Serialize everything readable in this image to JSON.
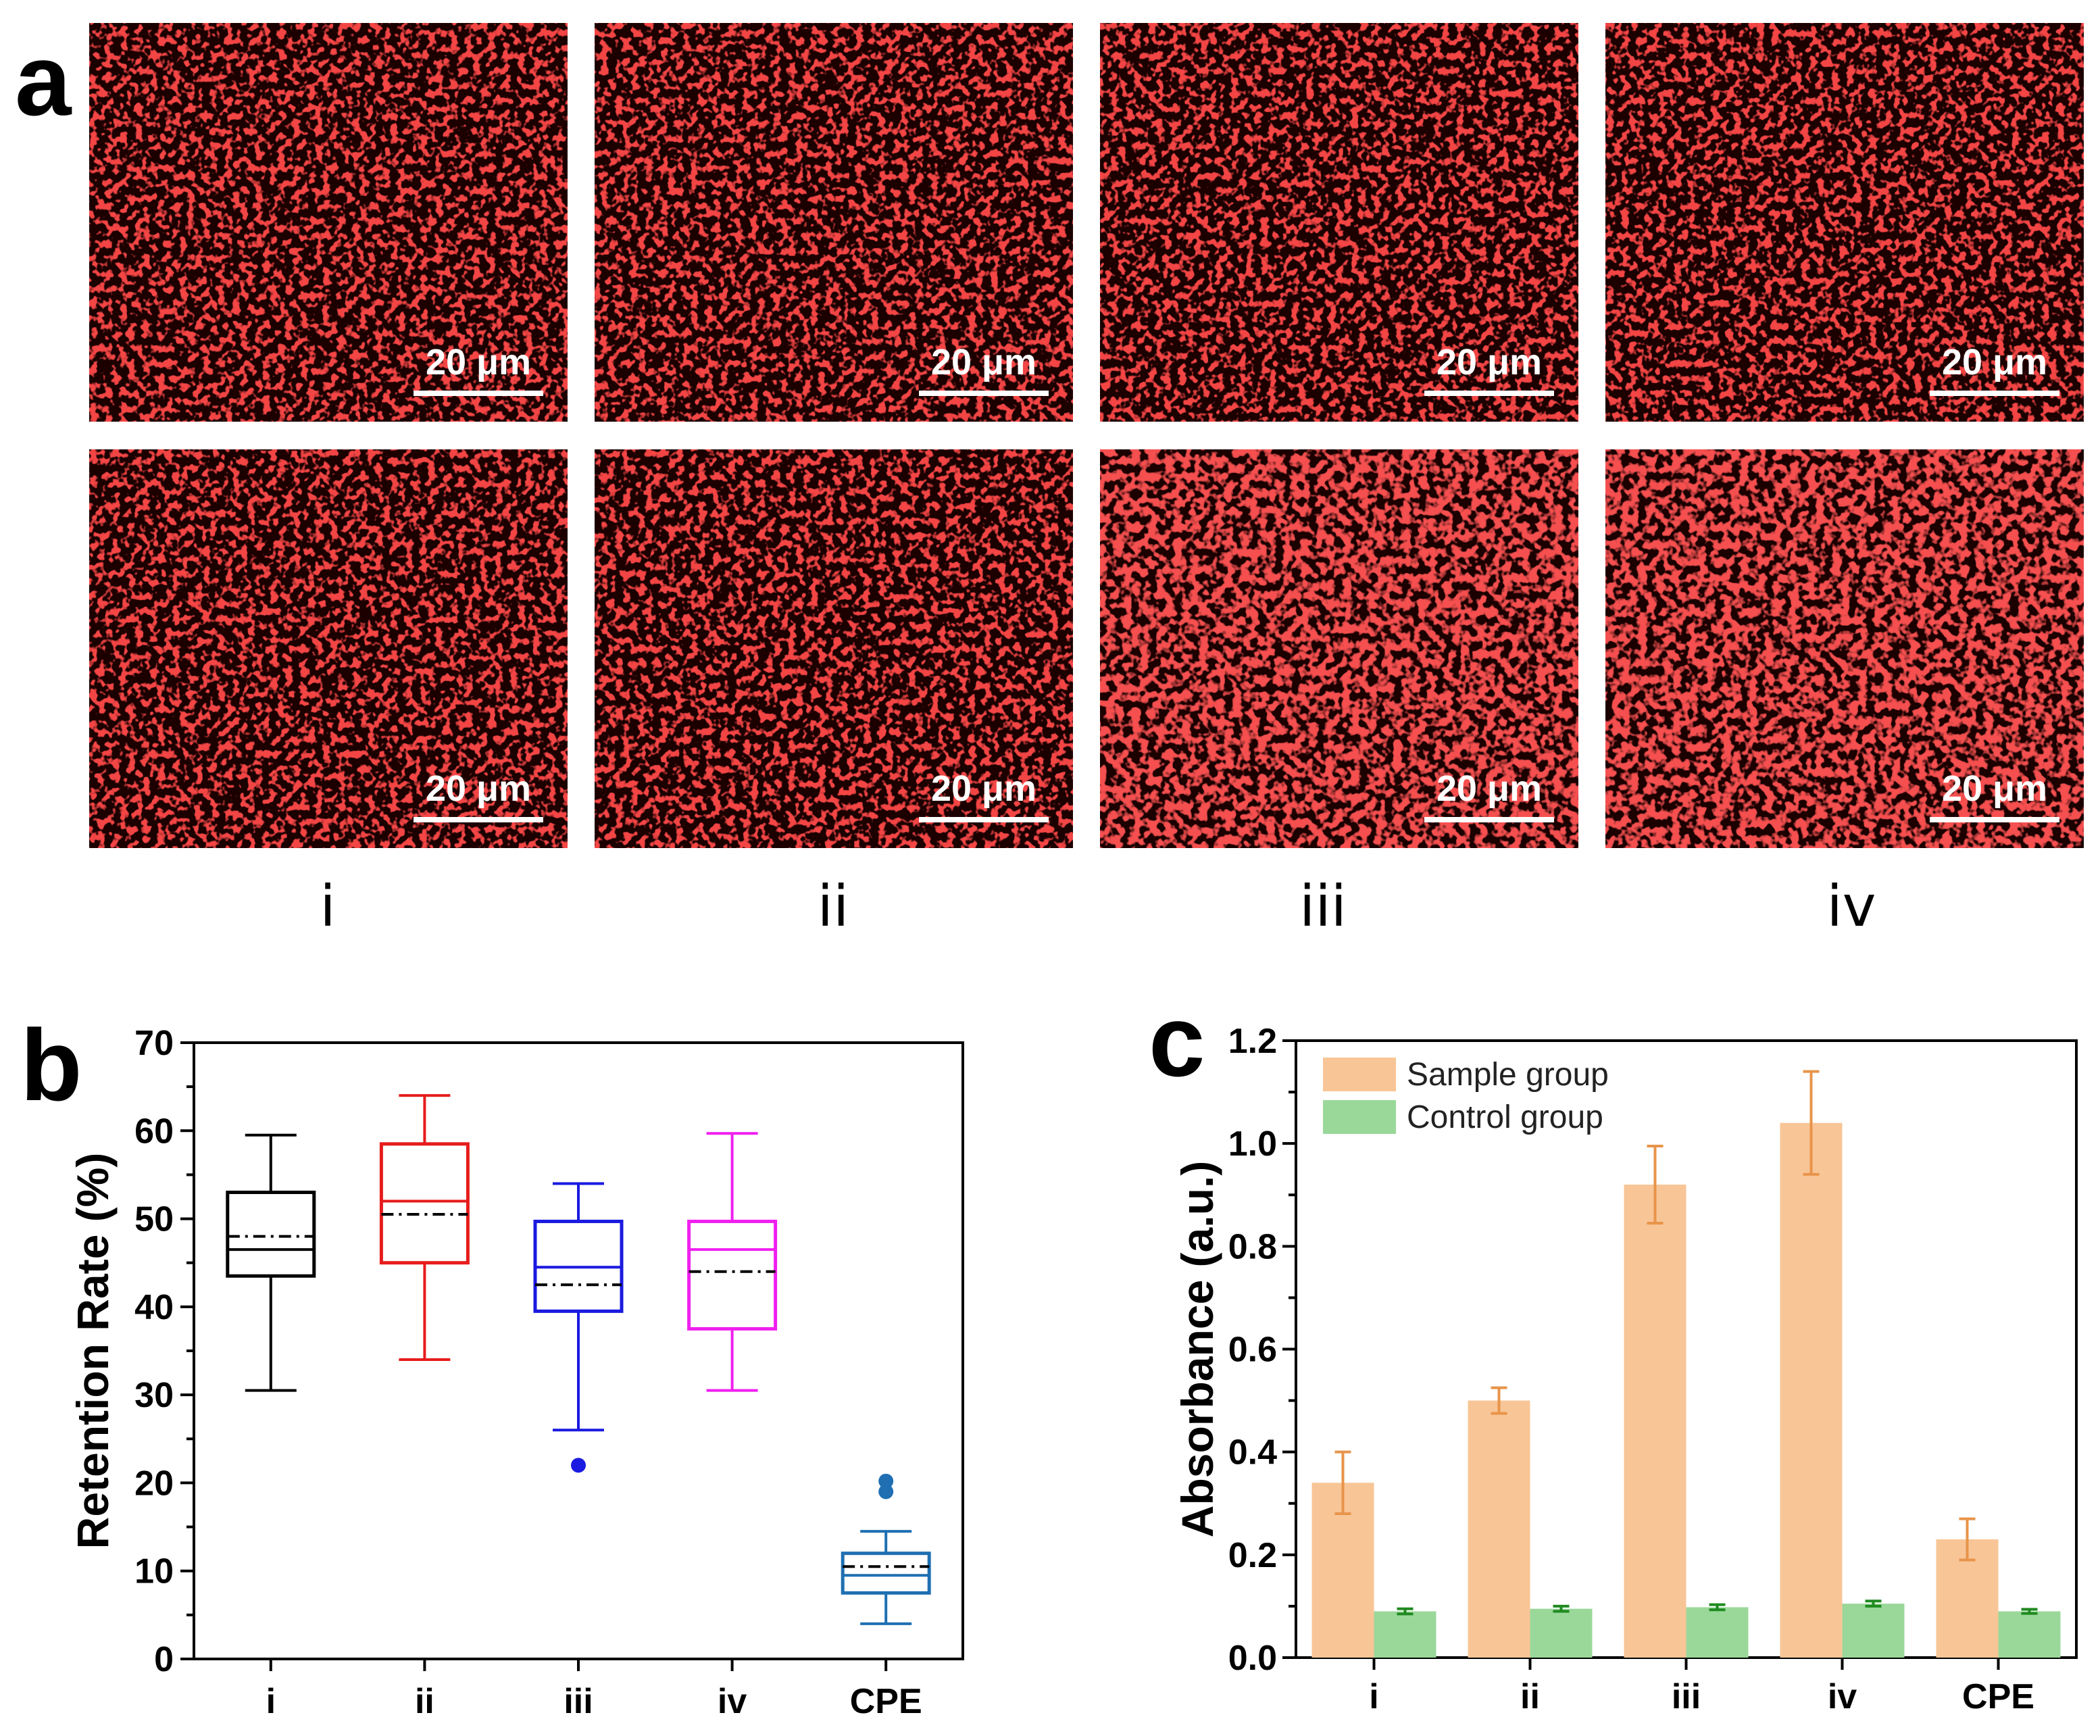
{
  "panel_labels": {
    "a": "a",
    "b": "b",
    "c": "c"
  },
  "micrographs": {
    "scale_bar_label": "20 μm",
    "conditions": [
      "i",
      "ii",
      "iii",
      "iv"
    ],
    "rows": 2,
    "fluorescence_color": "#e01010",
    "background_color": "#1a0303"
  },
  "chart_data": [
    {
      "id": "b",
      "type": "box",
      "categories": [
        "i",
        "ii",
        "iii",
        "iv",
        "CPE"
      ],
      "ylabel": "Retention Rate (%)",
      "xlabel": "",
      "ylim": [
        0,
        70
      ],
      "yticks": [
        0,
        10,
        20,
        30,
        40,
        50,
        60,
        70
      ],
      "boxes": [
        {
          "name": "i",
          "color": "#000000",
          "whisker_low": 30.5,
          "q1": 43.5,
          "median": 46.5,
          "mean": 48.0,
          "q3": 53.0,
          "whisker_high": 59.5,
          "outliers": []
        },
        {
          "name": "ii",
          "color": "#e61c1c",
          "whisker_low": 34.0,
          "q1": 45.0,
          "median": 52.0,
          "mean": 50.5,
          "q3": 58.5,
          "whisker_high": 64.0,
          "outliers": []
        },
        {
          "name": "iii",
          "color": "#1a1ae0",
          "whisker_low": 26.0,
          "q1": 39.5,
          "median": 44.5,
          "mean": 42.5,
          "q3": 49.7,
          "whisker_high": 54.0,
          "outliers": [
            22.0
          ]
        },
        {
          "name": "iv",
          "color": "#f01ff0",
          "whisker_low": 30.5,
          "q1": 37.5,
          "median": 46.5,
          "mean": 44.0,
          "q3": 49.7,
          "whisker_high": 59.7,
          "outliers": []
        },
        {
          "name": "CPE",
          "color": "#1f6fb2",
          "whisker_low": 4.0,
          "q1": 7.5,
          "median": 9.5,
          "mean": 10.5,
          "q3": 12.0,
          "whisker_high": 14.5,
          "outliers": [
            19.0,
            20.2
          ]
        }
      ]
    },
    {
      "id": "c",
      "type": "bar",
      "categories": [
        "i",
        "ii",
        "iii",
        "iv",
        "CPE"
      ],
      "ylabel": "Absorbance (a.u.)",
      "xlabel": "",
      "ylim": [
        0,
        1.2
      ],
      "yticks": [
        "0.0",
        "0.2",
        "0.4",
        "0.6",
        "0.8",
        "1.0",
        "1.2"
      ],
      "legend_position": "top-left",
      "series": [
        {
          "name": "Sample group",
          "color": "#f8c596",
          "errcolor": "#e8944a",
          "values": [
            0.34,
            0.5,
            0.92,
            1.04,
            0.23
          ],
          "errors": [
            0.06,
            0.025,
            0.075,
            0.1,
            0.04
          ]
        },
        {
          "name": "Control group",
          "color": "#9ad89a",
          "errcolor": "#1f8a1f",
          "values": [
            0.09,
            0.095,
            0.098,
            0.105,
            0.09
          ],
          "errors": [
            0.005,
            0.005,
            0.005,
            0.005,
            0.004
          ]
        }
      ]
    }
  ]
}
